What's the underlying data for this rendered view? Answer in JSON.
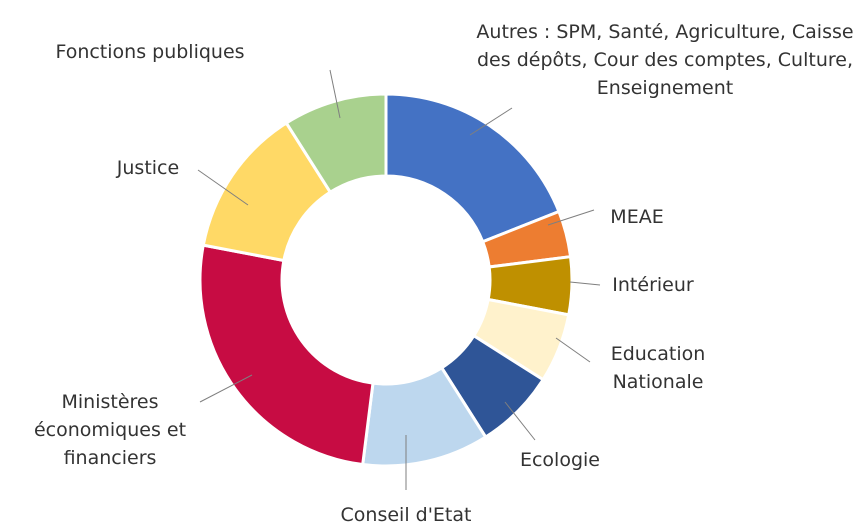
{
  "chart_data": {
    "type": "donut",
    "categories": [
      "Autres : SPM, Santé, Agriculture, Caisse des dépôts, Cour des comptes, Culture, Enseignement",
      "MEAE",
      "Intérieur",
      "Education Nationale",
      "Ecologie",
      "Conseil d'Etat",
      "Ministères économiques et financiers",
      "Justice",
      "Fonctions publiques"
    ],
    "values": [
      19,
      4,
      5,
      6,
      7,
      11,
      26,
      13,
      9
    ],
    "colors": [
      "#4472c4",
      "#ed7d31",
      "#bf9000",
      "#fff2cc",
      "#2f5597",
      "#bdd7ee",
      "#c70c43",
      "#ffd966",
      "#a9d18e"
    ]
  }
}
